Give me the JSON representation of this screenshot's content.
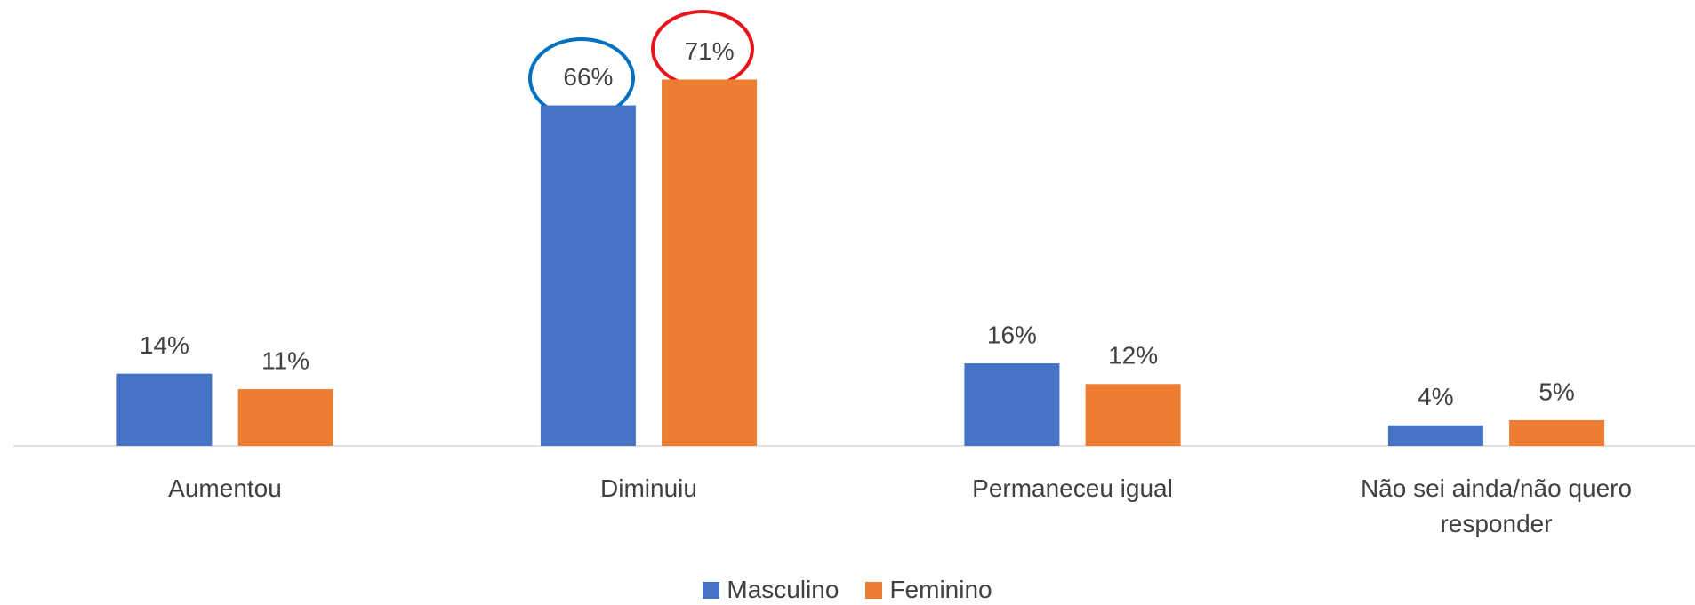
{
  "chart_data": {
    "type": "bar",
    "categories": [
      "Aumentou",
      "Diminuiu",
      "Permaneceu igual",
      "Não sei ainda/não quero responder"
    ],
    "series": [
      {
        "name": "Masculino",
        "color": "#4472c4",
        "values": [
          14,
          66,
          16,
          4
        ],
        "value_labels": [
          "14%",
          "66%",
          "16%",
          "4%"
        ]
      },
      {
        "name": "Feminino",
        "color": "#ed7d31",
        "values": [
          11,
          71,
          12,
          5
        ],
        "value_labels": [
          "11%",
          "71%",
          "12%",
          "5%"
        ]
      }
    ],
    "legend": "bottom"
  }
}
